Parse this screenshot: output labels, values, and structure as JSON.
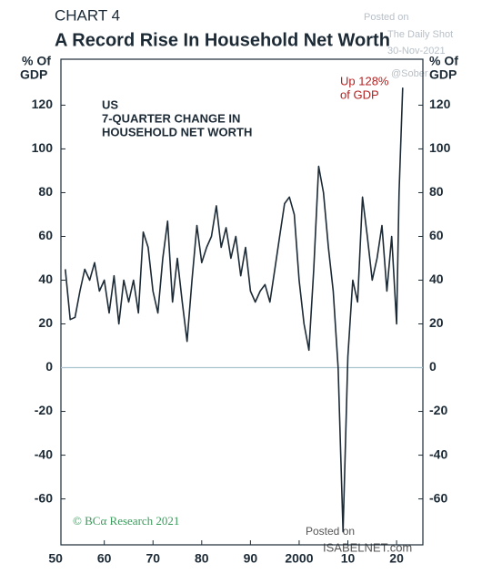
{
  "chart_data": {
    "type": "line",
    "kicker": "CHART 4",
    "title": "A Record Rise In Household Net Worth",
    "y_label_lines": [
      "% Of",
      "GDP"
    ],
    "subtitle_lines": [
      "US",
      "7-QUARTER CHANGE IN",
      "HOUSEHOLD NET WORTH"
    ],
    "annotation_lines": [
      "Up 128%",
      "of GDP"
    ],
    "credit": "© BCα Research 2021",
    "watermarks": [
      "Posted on",
      "The Daily Shot",
      "30-Nov-2021",
      "@Sober",
      "Posted on",
      "ISABELNET.com"
    ],
    "xlim": [
      1951.1,
      2025.4
    ],
    "xticks": [
      {
        "value": 1950,
        "label": "50"
      },
      {
        "value": 1960,
        "label": "60"
      },
      {
        "value": 1970,
        "label": "70"
      },
      {
        "value": 1980,
        "label": "80"
      },
      {
        "value": 1990,
        "label": "90"
      },
      2000,
      {
        "value": 2010,
        "label": "10"
      },
      {
        "value": 2020,
        "label": "20"
      }
    ],
    "ylim": [
      -81,
      141
    ],
    "yticks": [
      -60,
      -40,
      -20,
      0,
      20,
      40,
      60,
      80,
      100,
      120
    ],
    "series": [
      {
        "color": "#1c2a36",
        "x": [
          1952,
          1953,
          1954,
          1955,
          1956,
          1957,
          1958,
          1959,
          1960,
          1961,
          1962,
          1963,
          1964,
          1965,
          1966,
          1967,
          1968,
          1969,
          1970,
          1971,
          1972,
          1973,
          1974,
          1975,
          1976,
          1977,
          1978,
          1979,
          1980,
          1981,
          1982,
          1983,
          1984,
          1985,
          1986,
          1987,
          1988,
          1989,
          1990,
          1991,
          1992,
          1993,
          1994,
          1995,
          1996,
          1997,
          1998,
          1999,
          2000,
          2001,
          2002,
          2003,
          2004,
          2005,
          2006,
          2007,
          2008,
          2009,
          2010,
          2011,
          2012,
          2013,
          2014,
          2015,
          2016,
          2017,
          2018,
          2019,
          2020,
          2020.5,
          2021.25
        ],
        "values": [
          45,
          22,
          23,
          35,
          45,
          40,
          48,
          35,
          40,
          25,
          42,
          20,
          40,
          30,
          40,
          25,
          62,
          55,
          35,
          25,
          50,
          67,
          30,
          50,
          30,
          12,
          40,
          65,
          48,
          55,
          60,
          74,
          55,
          64,
          50,
          60,
          42,
          55,
          35,
          30,
          35,
          38,
          30,
          45,
          60,
          75,
          78,
          70,
          40,
          20,
          8,
          45,
          92,
          80,
          55,
          35,
          0,
          -75,
          5,
          40,
          30,
          78,
          60,
          40,
          50,
          65,
          35,
          60,
          20,
          80,
          128
        ]
      }
    ]
  }
}
